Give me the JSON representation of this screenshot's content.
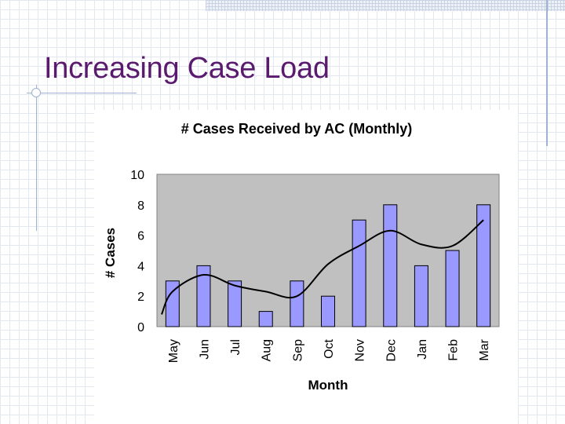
{
  "slide": {
    "title": "Increasing Case Load"
  },
  "colors": {
    "title": "#5a1a6e",
    "plot_background": "#c0c0c0",
    "bar_fill": "#9999ff",
    "trend_line": "#000000"
  },
  "chart_data": {
    "type": "bar",
    "title": "# Cases Received by AC (Monthly)",
    "xlabel": "Month",
    "ylabel": "# Cases",
    "categories": [
      "May",
      "Jun",
      "Jul",
      "Aug",
      "Sep",
      "Oct",
      "Nov",
      "Dec",
      "Jan",
      "Feb",
      "Mar"
    ],
    "values": [
      3,
      4,
      3,
      1,
      3,
      2,
      7,
      8,
      4,
      5,
      8
    ],
    "ylim": [
      0,
      10
    ],
    "yticks": [
      0,
      2,
      4,
      6,
      8,
      10
    ],
    "grid": false,
    "trend": {
      "type": "smoothed line",
      "x": [
        -0.35,
        0,
        1,
        2,
        3,
        4,
        5,
        6,
        7,
        8,
        9,
        10
      ],
      "y": [
        0.8,
        2.3,
        3.4,
        2.7,
        2.3,
        2.0,
        4.1,
        5.3,
        6.3,
        5.4,
        5.3,
        7.0
      ]
    }
  }
}
